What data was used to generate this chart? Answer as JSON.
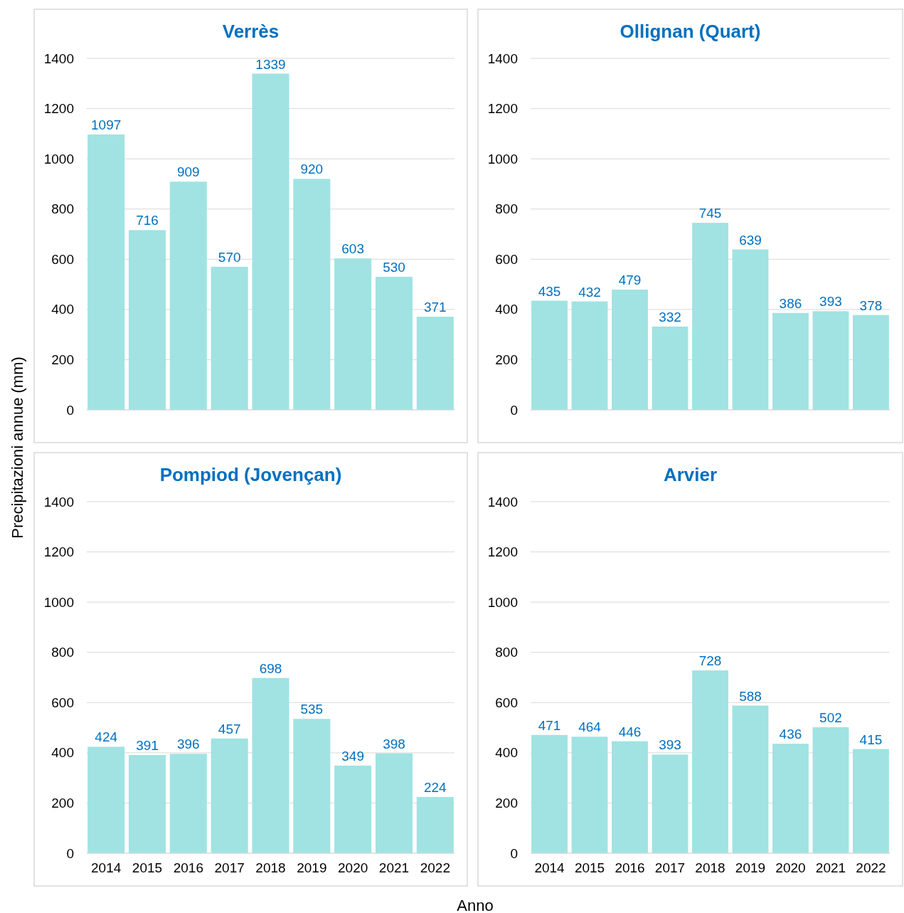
{
  "chart_data": [
    {
      "type": "bar",
      "title": "Verrès",
      "ylabel": "Precipitazioni annue (mm)",
      "categories": [
        "2014",
        "2015",
        "2016",
        "2017",
        "2018",
        "2019",
        "2020",
        "2021",
        "2022"
      ],
      "values": [
        1097,
        716,
        909,
        570,
        1339,
        920,
        603,
        530,
        371
      ],
      "color": "#a0e3e2",
      "ylim": [
        0,
        1400
      ],
      "yticks": [
        0,
        200,
        400,
        600,
        800,
        1000,
        1200,
        1400
      ],
      "grid": "y",
      "data_labels": true,
      "tick_labels": "y"
    },
    {
      "type": "bar",
      "title": "Ollignan (Quart)",
      "categories": [
        "2014",
        "2015",
        "2016",
        "2017",
        "2018",
        "2019",
        "2020",
        "2021",
        "2022"
      ],
      "values": [
        435,
        432,
        479,
        332,
        745,
        639,
        386,
        393,
        378
      ],
      "color": "#a0e3e2",
      "ylim": [
        0,
        1400
      ],
      "yticks": [
        0,
        200,
        400,
        600,
        800,
        1000,
        1200,
        1400
      ],
      "grid": "y",
      "data_labels": true,
      "tick_labels": "y"
    },
    {
      "type": "bar",
      "title": "Pompiod (Jovençan)",
      "categories": [
        "2014",
        "2015",
        "2016",
        "2017",
        "2018",
        "2019",
        "2020",
        "2021",
        "2022"
      ],
      "values": [
        424,
        391,
        396,
        457,
        698,
        535,
        349,
        398,
        224
      ],
      "color": "#a0e3e2",
      "ylim": [
        0,
        1400
      ],
      "yticks": [
        0,
        200,
        400,
        600,
        800,
        1000,
        1200,
        1400
      ],
      "grid": "y",
      "data_labels": true
    },
    {
      "type": "bar",
      "title": "Arvier",
      "xlabel": "Anno",
      "categories": [
        "2014",
        "2015",
        "2016",
        "2017",
        "2018",
        "2019",
        "2020",
        "2021",
        "2022"
      ],
      "values": [
        471,
        464,
        446,
        393,
        728,
        588,
        436,
        502,
        415
      ],
      "color": "#a0e3e2",
      "ylim": [
        0,
        1400
      ],
      "yticks": [
        0,
        200,
        400,
        600,
        800,
        1000,
        1200,
        1400
      ],
      "grid": "y",
      "data_labels": true
    }
  ]
}
